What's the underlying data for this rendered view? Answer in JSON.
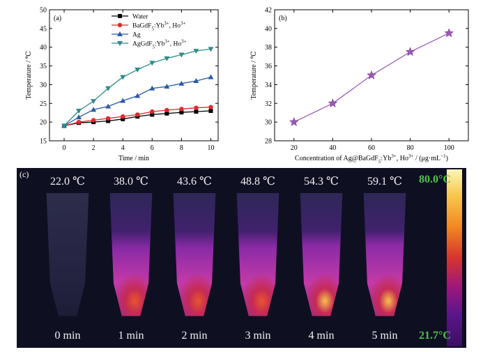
{
  "chart_data": [
    {
      "type": "line",
      "panel_label": "(a)",
      "xlabel": "Time / min",
      "ylabel": "Temperature / ℃",
      "xlim": [
        -1,
        10.5
      ],
      "ylim": [
        15,
        50
      ],
      "xticks": [
        0,
        2,
        4,
        6,
        8,
        10
      ],
      "yticks": [
        15,
        20,
        25,
        30,
        35,
        40,
        45,
        50
      ],
      "legend_position": "top-center",
      "x": [
        0,
        1,
        2,
        3,
        4,
        5,
        6,
        7,
        8,
        9,
        10
      ],
      "series": [
        {
          "name": "Water",
          "color": "#000000",
          "marker": "square",
          "values": [
            19.0,
            19.8,
            20.0,
            20.3,
            20.8,
            21.5,
            22.0,
            22.3,
            22.6,
            22.8,
            23.0
          ]
        },
        {
          "name_main": "BaGdF",
          "name_sub": "5",
          "name_tail": ":Yb",
          "name_sup1": "3+",
          "name_mid": ", Ho",
          "name_sup2": "3+",
          "color": "#e8262d",
          "marker": "circle",
          "values": [
            19.0,
            20.0,
            20.5,
            21.0,
            21.5,
            22.0,
            22.8,
            23.2,
            23.5,
            23.8,
            24.0
          ]
        },
        {
          "name": "Ag",
          "color": "#2b5aa8",
          "marker": "triangle-up",
          "values": [
            19.0,
            21.3,
            23.3,
            24.2,
            25.7,
            27.0,
            29.0,
            29.5,
            30.3,
            31.0,
            32.0
          ]
        },
        {
          "name_main": "AgGdF",
          "name_sub": "5",
          "name_tail": ":Yb",
          "name_sup1": "3+",
          "name_mid": ", Ho",
          "name_sup2": "3+",
          "color": "#2e8b8b",
          "marker": "triangle-down",
          "values": [
            19.0,
            23.0,
            25.6,
            29.0,
            32.0,
            34.0,
            35.8,
            37.0,
            38.0,
            39.0,
            39.5
          ]
        }
      ]
    },
    {
      "type": "line",
      "panel_label": "(b)",
      "xlabel_main": "Concentration of Ag@BaGdF",
      "xlabel_sub": "5",
      "xlabel_tail": ":Yb",
      "xlabel_sup1": "3+",
      "xlabel_mid": ", Ho",
      "xlabel_sup2": "3+",
      "xlabel_unit": " / (μg·mL",
      "xlabel_sup3": "−1",
      "xlabel_end": ")",
      "ylabel": "Temperature / ℃",
      "xlim": [
        10,
        110
      ],
      "ylim": [
        28,
        42
      ],
      "xticks": [
        20,
        40,
        60,
        80,
        100
      ],
      "yticks": [
        28,
        30,
        32,
        34,
        36,
        38,
        40,
        42
      ],
      "x": [
        20,
        40,
        60,
        80,
        100
      ],
      "series": [
        {
          "color": "#9b59b6",
          "marker": "star",
          "values": [
            30.0,
            32.0,
            35.0,
            37.5,
            39.5
          ]
        }
      ]
    }
  ],
  "thermal": {
    "panel_label": "(c)",
    "temperatures": [
      "22.0 ℃",
      "38.0 ℃",
      "43.6 ℃",
      "48.8 ℃",
      "54.3 ℃",
      "59.1 ℃"
    ],
    "times": [
      "0 min",
      "1 min",
      "2 min",
      "3 min",
      "4 min",
      "5 min"
    ],
    "colorbar_max": "80.0°C",
    "colorbar_min": "21.7°C",
    "heat_levels": [
      0.0,
      0.55,
      0.62,
      0.7,
      0.8,
      0.9
    ]
  }
}
